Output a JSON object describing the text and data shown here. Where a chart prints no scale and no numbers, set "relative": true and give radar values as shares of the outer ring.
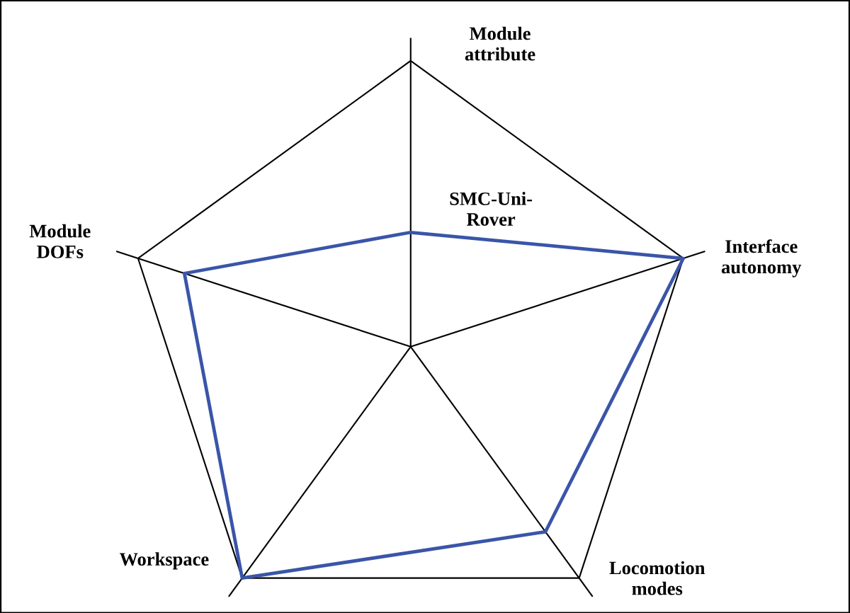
{
  "chart_data": {
    "type": "radar",
    "relative": true,
    "categories": [
      "Module attribute",
      "Interface autonomy",
      "Locomotion modes",
      "Workspace",
      "Module DOFs"
    ],
    "series": [
      {
        "name": "SMC-Uni-Rover",
        "color": "#3a55a8",
        "values": [
          0.4,
          1.0,
          0.8,
          1.0,
          0.83
        ]
      }
    ],
    "legend": false,
    "marker": "none",
    "line_style": "solid"
  }
}
